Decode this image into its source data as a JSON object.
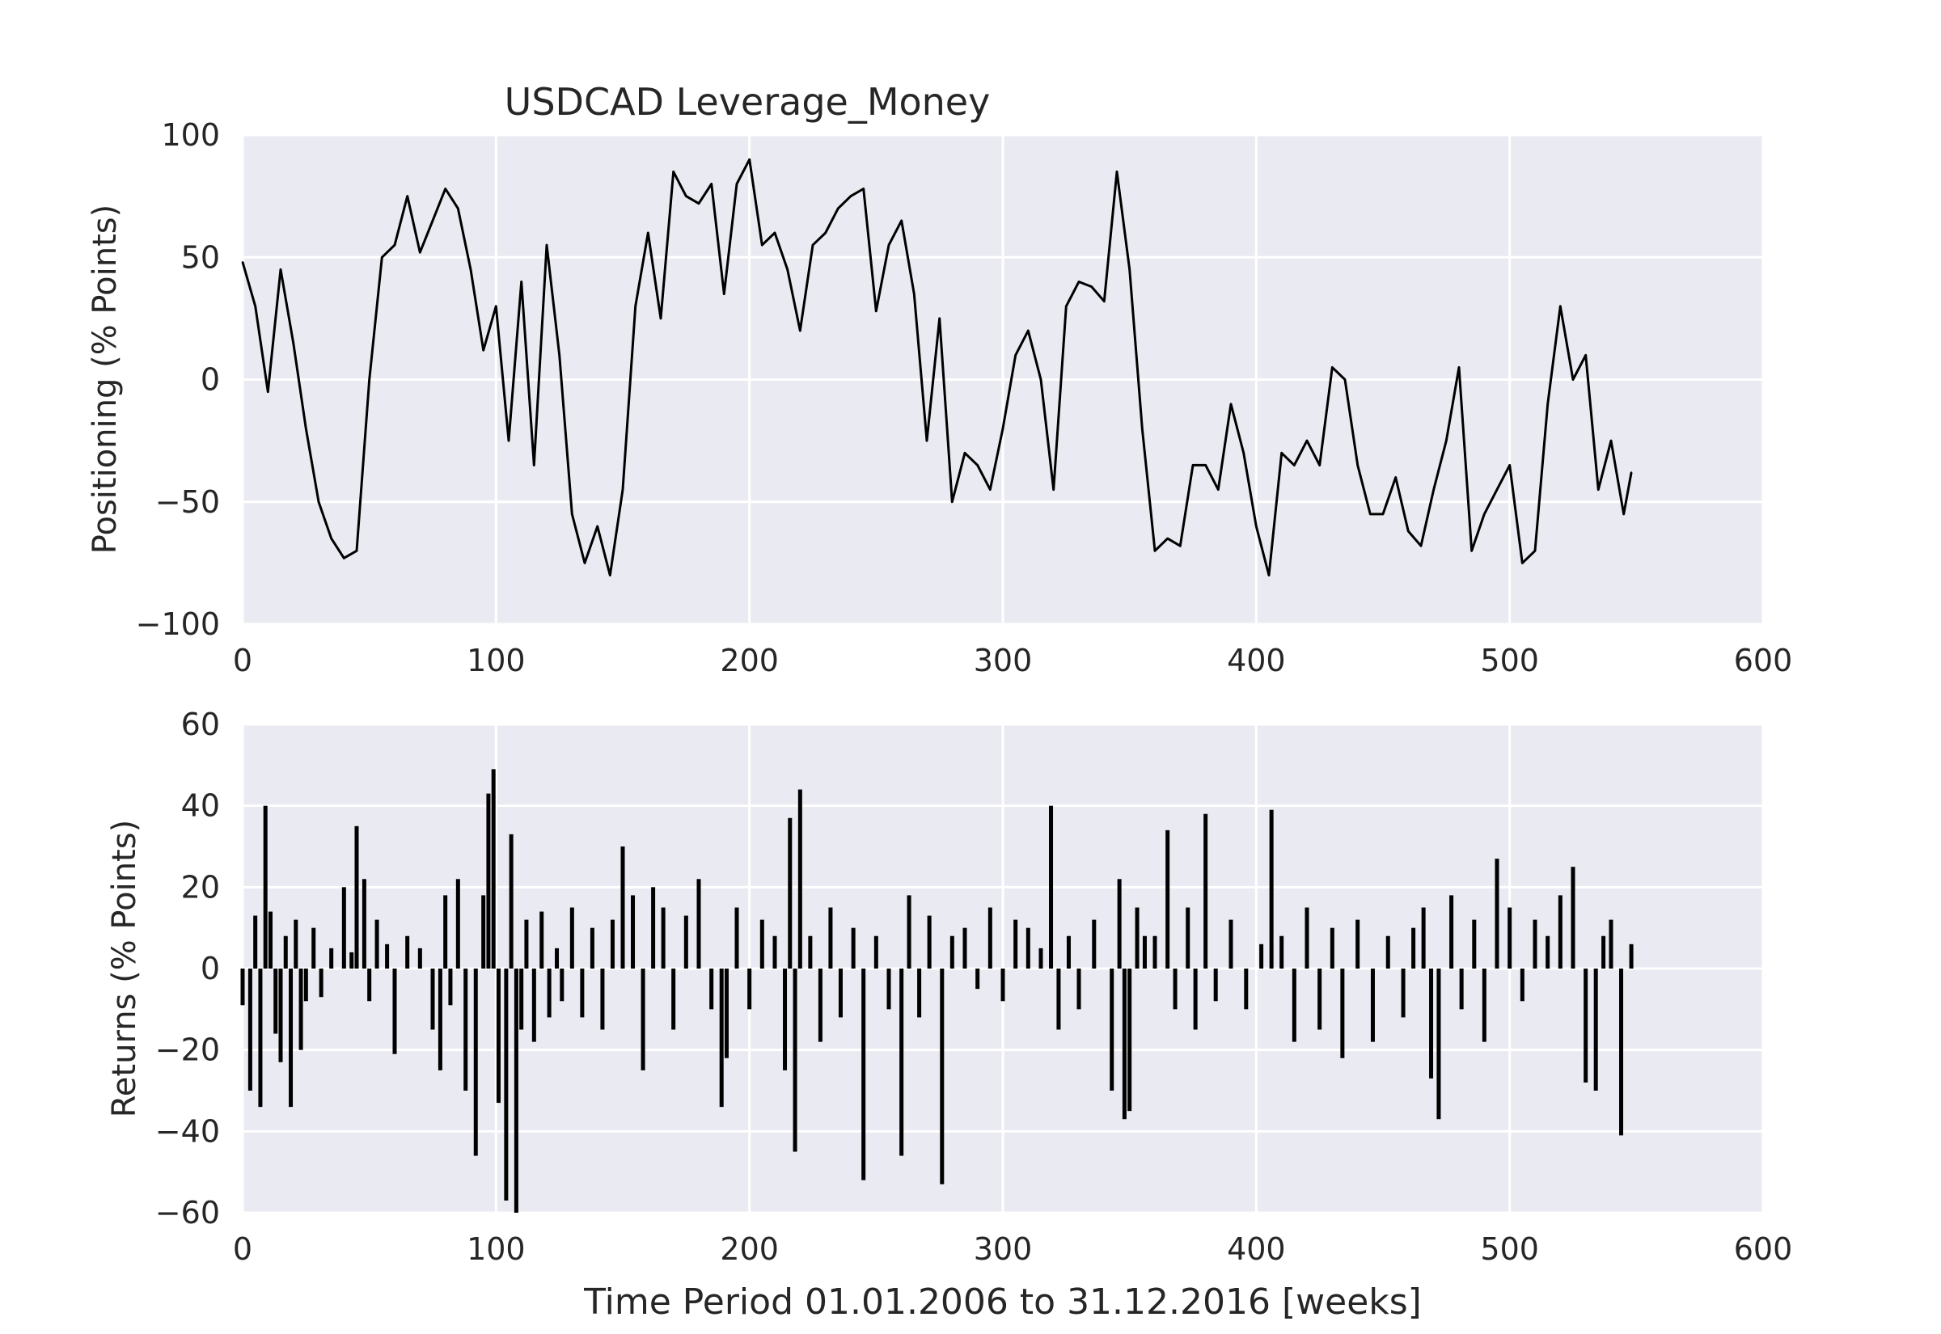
{
  "figure": {
    "title": "USDCAD Leverage_Money"
  },
  "chart_data": [
    {
      "type": "line",
      "title": "USDCAD Leverage_Money",
      "xlabel": "",
      "ylabel": "Positioning (% Points)",
      "xlim": [
        0,
        600
      ],
      "ylim": [
        -100,
        100
      ],
      "xticks": [
        "0",
        "100",
        "200",
        "300",
        "400",
        "500",
        "600"
      ],
      "yticks": [
        "−100",
        "−50",
        "0",
        "50",
        "100"
      ],
      "grid": true,
      "line_color": "#000000",
      "background_color": "#eaeaf2",
      "series": [
        {
          "x": [
            0,
            5,
            10,
            15,
            20,
            25,
            30,
            35,
            40,
            45,
            50,
            55,
            60,
            65,
            70,
            75,
            80,
            85,
            90,
            95,
            100,
            105,
            110,
            115,
            120,
            125,
            130,
            135,
            140,
            145,
            150,
            155,
            160,
            165,
            170,
            175,
            180,
            185,
            190,
            195,
            200,
            205,
            210,
            215,
            220,
            225,
            230,
            235,
            240,
            245,
            250,
            255,
            260,
            265,
            270,
            275,
            280,
            285,
            290,
            295,
            300,
            305,
            310,
            315,
            320,
            325,
            330,
            335,
            340,
            345,
            350,
            355,
            360,
            365,
            370,
            375,
            380,
            385,
            390,
            395,
            400,
            405,
            410,
            415,
            420,
            425,
            430,
            435,
            440,
            445,
            450,
            455,
            460,
            465,
            470,
            475,
            480,
            485,
            490,
            495,
            500,
            505,
            510,
            515,
            520,
            525,
            530,
            535,
            540,
            545,
            548
          ],
          "y": [
            48,
            30,
            -5,
            45,
            15,
            -20,
            -50,
            -65,
            -73,
            -70,
            0,
            50,
            55,
            75,
            52,
            65,
            78,
            70,
            45,
            12,
            30,
            -25,
            40,
            -35,
            55,
            10,
            -55,
            -75,
            -60,
            -80,
            -45,
            30,
            60,
            25,
            85,
            75,
            72,
            80,
            35,
            80,
            90,
            55,
            60,
            45,
            20,
            55,
            60,
            70,
            75,
            78,
            28,
            55,
            65,
            35,
            -25,
            25,
            -50,
            -30,
            -35,
            -45,
            -20,
            10,
            20,
            0,
            -45,
            30,
            40,
            38,
            32,
            85,
            45,
            -20,
            -70,
            -65,
            -68,
            -35,
            -35,
            -45,
            -10,
            -30,
            -60,
            -80,
            -30,
            -35,
            -25,
            -35,
            5,
            0,
            -35,
            -55,
            -55,
            -40,
            -62,
            -68,
            -45,
            -25,
            5,
            -70,
            -55,
            -45,
            -35,
            -75,
            -70,
            -10,
            30,
            0,
            10,
            -45,
            -25,
            -55,
            -38
          ]
        }
      ]
    },
    {
      "type": "bar",
      "title": "",
      "xlabel": "Time Period 01.01.2006 to 31.12.2016 [weeks]",
      "ylabel": "Returns (% Points)",
      "xlim": [
        0,
        600
      ],
      "ylim": [
        -60,
        60
      ],
      "xticks": [
        "0",
        "100",
        "200",
        "300",
        "400",
        "500",
        "600"
      ],
      "yticks": [
        "−60",
        "−40",
        "−20",
        "0",
        "20",
        "40",
        "60"
      ],
      "grid": true,
      "bar_color": "#000000",
      "background_color": "#eaeaf2",
      "series": [
        {
          "x": [
            0,
            3,
            5,
            7,
            9,
            11,
            13,
            15,
            17,
            19,
            21,
            23,
            25,
            28,
            31,
            35,
            40,
            43,
            45,
            48,
            50,
            53,
            57,
            60,
            65,
            70,
            75,
            78,
            80,
            82,
            85,
            88,
            92,
            95,
            97,
            99,
            101,
            104,
            106,
            108,
            110,
            112,
            115,
            118,
            121,
            124,
            126,
            130,
            134,
            138,
            142,
            146,
            150,
            154,
            158,
            162,
            166,
            170,
            175,
            180,
            185,
            189,
            191,
            195,
            200,
            205,
            210,
            214,
            216,
            218,
            220,
            224,
            228,
            232,
            236,
            241,
            245,
            250,
            255,
            260,
            263,
            267,
            271,
            276,
            280,
            285,
            290,
            295,
            300,
            305,
            310,
            315,
            319,
            322,
            326,
            330,
            336,
            343,
            346,
            348,
            350,
            353,
            356,
            360,
            365,
            368,
            373,
            376,
            380,
            384,
            390,
            396,
            402,
            406,
            410,
            415,
            420,
            425,
            430,
            434,
            440,
            446,
            452,
            458,
            462,
            466,
            469,
            472,
            477,
            481,
            486,
            490,
            495,
            500,
            505,
            510,
            515,
            520,
            525,
            530,
            534,
            537,
            540,
            544,
            548
          ],
          "values": [
            -9,
            -30,
            13,
            -34,
            40,
            14,
            -16,
            -23,
            8,
            -34,
            12,
            -20,
            -8,
            10,
            -7,
            5,
            20,
            4,
            35,
            22,
            -8,
            12,
            6,
            -21,
            8,
            5,
            -15,
            -25,
            18,
            -9,
            22,
            -30,
            -46,
            18,
            43,
            49,
            -33,
            -57,
            33,
            -60,
            -15,
            12,
            -18,
            14,
            -12,
            5,
            -8,
            15,
            -12,
            10,
            -15,
            12,
            30,
            18,
            -25,
            20,
            15,
            -15,
            13,
            22,
            -10,
            -34,
            -22,
            15,
            -10,
            12,
            8,
            -25,
            37,
            -45,
            44,
            8,
            -18,
            15,
            -12,
            10,
            -52,
            8,
            -10,
            -46,
            18,
            -12,
            13,
            -53,
            8,
            10,
            -5,
            15,
            -8,
            12,
            10,
            5,
            40,
            -15,
            8,
            -10,
            12,
            -30,
            22,
            -37,
            -35,
            15,
            8,
            8,
            34,
            -10,
            15,
            -15,
            38,
            -8,
            12,
            -10,
            6,
            39,
            8,
            -18,
            15,
            -15,
            10,
            -22,
            12,
            -18,
            8,
            -12,
            10,
            15,
            -27,
            -37,
            18,
            -10,
            12,
            -18,
            27,
            15,
            -8,
            12,
            8,
            18,
            25,
            -28,
            -30,
            8,
            12,
            -41,
            6
          ]
        }
      ]
    }
  ]
}
